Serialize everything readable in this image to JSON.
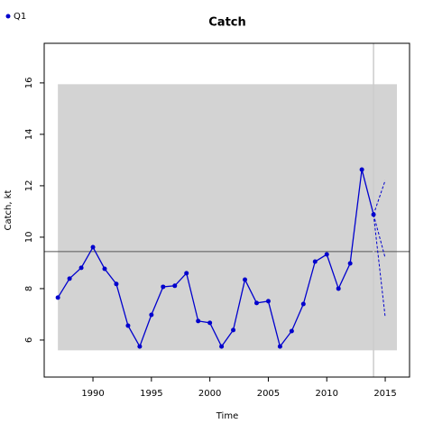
{
  "chart_data": {
    "type": "line",
    "title": "Catch",
    "x_label": "Time",
    "y_label": "Catch, kt",
    "x": [
      1987,
      1988,
      1989,
      1990,
      1991,
      1992,
      1993,
      1994,
      1995,
      1996,
      1997,
      1998,
      1999,
      2000,
      2001,
      2002,
      2003,
      2004,
      2005,
      2006,
      2007,
      2008,
      2009,
      2010,
      2011,
      2012,
      2013,
      2014
    ],
    "series": [
      {
        "name": "Q1",
        "color": "#0000cd",
        "values": [
          7.65,
          8.39,
          8.81,
          9.61,
          8.77,
          8.18,
          6.56,
          5.75,
          6.98,
          8.07,
          8.11,
          8.6,
          6.74,
          6.67,
          5.75,
          6.39,
          8.35,
          7.44,
          7.51,
          5.75,
          6.35,
          7.4,
          9.05,
          9.33,
          8.0,
          8.98,
          12.63,
          10.88
        ]
      }
    ],
    "projection": {
      "x": 2015,
      "values": [
        12.21,
        9.19,
        6.88
      ],
      "color": "#0000cd"
    },
    "band": {
      "x": [
        1987,
        2016
      ],
      "y": [
        5.6,
        15.95
      ],
      "color": "#d3d3d3"
    },
    "hline": 9.44,
    "vline": 2014,
    "xlim": [
      1985.83,
      2017.08
    ],
    "ylim": [
      4.56,
      17.54
    ],
    "xticks": [
      1990,
      1995,
      2000,
      2005,
      2010,
      2015
    ],
    "yticks": [
      6,
      8,
      10,
      12,
      14,
      16
    ],
    "legend": "top-left"
  }
}
